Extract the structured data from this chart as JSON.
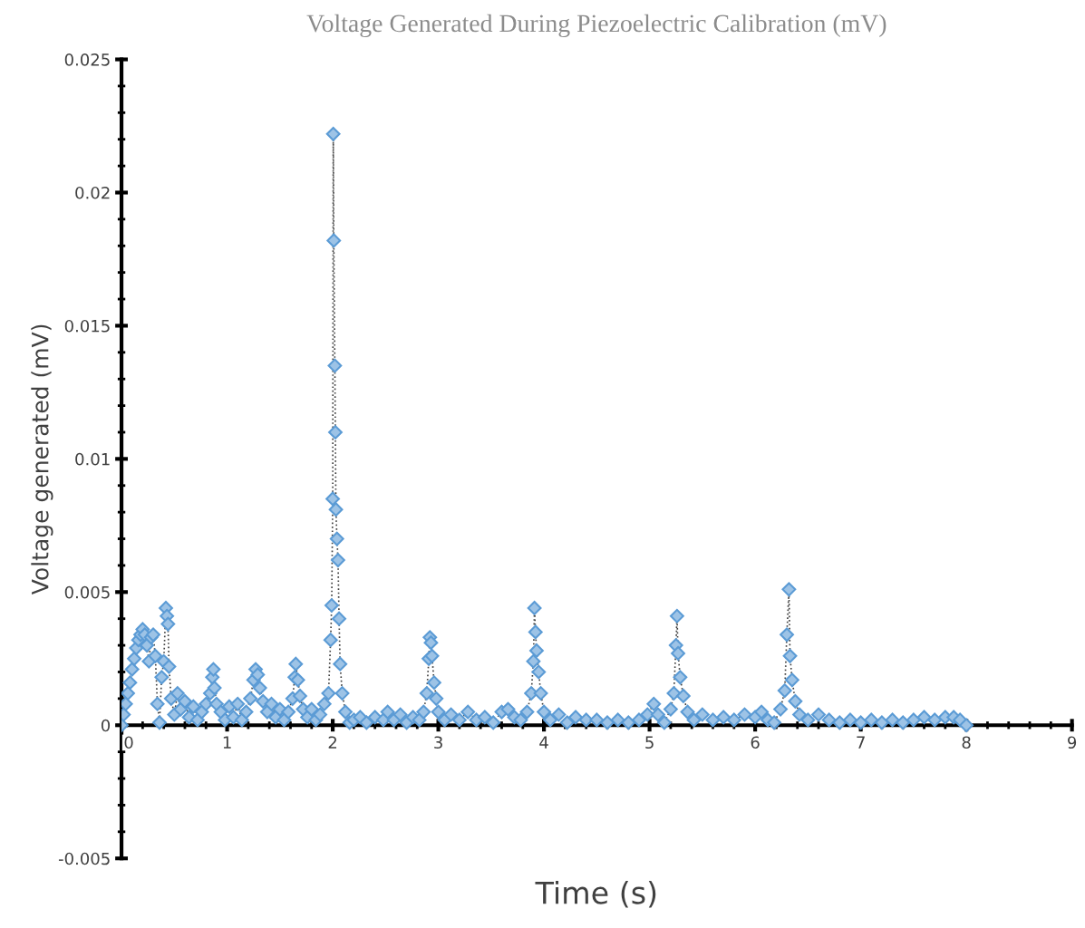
{
  "chart_data": {
    "type": "line",
    "title": "Voltage Generated During Piezoelectric Calibration (mV)",
    "xlabel": "Time (s)",
    "ylabel": "Voltage generated (mV)",
    "xlim": [
      0,
      9
    ],
    "xticks": [
      0,
      1,
      2,
      3,
      4,
      5,
      6,
      7,
      8,
      9
    ],
    "ylim": [
      -0.005,
      0.025
    ],
    "yticks": [
      -0.005,
      0,
      0.005,
      0.01,
      0.015,
      0.02,
      0.025
    ],
    "grid": false,
    "legend": false,
    "marker": "diamond",
    "line_style": "dotted",
    "series": [
      {
        "color": "#5b9bd5",
        "x": [
          0,
          0.02,
          0.04,
          0.06,
          0.08,
          0.1,
          0.12,
          0.14,
          0.16,
          0.18,
          0.2,
          0.22,
          0.24,
          0.26,
          0.28,
          0.3,
          0.32,
          0.34,
          0.36,
          0.38,
          0.4,
          0.42,
          0.43,
          0.44,
          0.45,
          0.47,
          0.5,
          0.53,
          0.56,
          0.6,
          0.64,
          0.68,
          0.72,
          0.76,
          0.8,
          0.84,
          0.86,
          0.87,
          0.88,
          0.9,
          0.94,
          0.98,
          1.02,
          1.06,
          1.1,
          1.14,
          1.18,
          1.22,
          1.25,
          1.27,
          1.29,
          1.31,
          1.34,
          1.38,
          1.42,
          1.46,
          1.5,
          1.54,
          1.58,
          1.62,
          1.64,
          1.65,
          1.67,
          1.69,
          1.72,
          1.76,
          1.8,
          1.84,
          1.88,
          1.92,
          1.96,
          1.98,
          1.99,
          2.0,
          2.005,
          2.01,
          2.02,
          2.025,
          2.03,
          2.04,
          2.05,
          2.06,
          2.07,
          2.09,
          2.12,
          2.16,
          2.2,
          2.26,
          2.32,
          2.4,
          2.48,
          2.52,
          2.58,
          2.64,
          2.7,
          2.76,
          2.82,
          2.86,
          2.89,
          2.91,
          2.92,
          2.93,
          2.94,
          2.96,
          2.98,
          3.0,
          3.06,
          3.12,
          3.2,
          3.28,
          3.36,
          3.44,
          3.52,
          3.6,
          3.66,
          3.72,
          3.78,
          3.84,
          3.88,
          3.9,
          3.91,
          3.92,
          3.93,
          3.95,
          3.97,
          4.0,
          4.06,
          4.14,
          4.22,
          4.3,
          4.4,
          4.5,
          4.6,
          4.7,
          4.8,
          4.9,
          4.98,
          5.04,
          5.08,
          5.14,
          5.2,
          5.23,
          5.25,
          5.26,
          5.27,
          5.29,
          5.32,
          5.36,
          5.42,
          5.5,
          5.6,
          5.7,
          5.8,
          5.9,
          6.0,
          6.06,
          6.12,
          6.18,
          6.24,
          6.28,
          6.3,
          6.32,
          6.33,
          6.35,
          6.38,
          6.42,
          6.5,
          6.6,
          6.7,
          6.8,
          6.9,
          7.0,
          7.1,
          7.2,
          7.3,
          7.4,
          7.5,
          7.6,
          7.7,
          7.8,
          7.88,
          7.94,
          8.0
        ],
        "values": [
          0,
          0.0004,
          0.0008,
          0.0012,
          0.0016,
          0.0021,
          0.0025,
          0.0029,
          0.0032,
          0.0034,
          0.0036,
          0.0034,
          0.003,
          0.0024,
          0.0033,
          0.0034,
          0.0026,
          0.0008,
          0.0001,
          0.0018,
          0.0024,
          0.0044,
          0.0041,
          0.0038,
          0.0022,
          0.001,
          0.0004,
          0.0012,
          0.0006,
          0.0009,
          0.0003,
          0.0007,
          0.0002,
          0.0005,
          0.0008,
          0.0012,
          0.0018,
          0.0021,
          0.0014,
          0.0008,
          0.0005,
          0.0002,
          0.0007,
          0.0003,
          0.0008,
          0.0002,
          0.0005,
          0.001,
          0.0017,
          0.0021,
          0.0019,
          0.0014,
          0.0009,
          0.0005,
          0.0008,
          0.0003,
          0.0006,
          0.0002,
          0.0005,
          0.001,
          0.0018,
          0.0023,
          0.0017,
          0.0011,
          0.0006,
          0.0003,
          0.0006,
          0.0002,
          0.0004,
          0.0008,
          0.0012,
          0.0032,
          0.0045,
          0.0085,
          0.0222,
          0.0182,
          0.0135,
          0.011,
          0.0081,
          0.007,
          0.0062,
          0.004,
          0.0023,
          0.0012,
          0.0005,
          0.0001,
          0.0002,
          0.0003,
          0.0001,
          0.0003,
          0.0002,
          0.0005,
          0.0002,
          0.0004,
          0.0001,
          0.0003,
          0.0002,
          0.0005,
          0.0012,
          0.0025,
          0.0033,
          0.0031,
          0.0026,
          0.0016,
          0.001,
          0.0005,
          0.0002,
          0.0004,
          0.0002,
          0.0005,
          0.0002,
          0.0003,
          0.0001,
          0.0005,
          0.0006,
          0.0003,
          0.0002,
          0.0005,
          0.0012,
          0.0024,
          0.0044,
          0.0035,
          0.0028,
          0.002,
          0.0012,
          0.0005,
          0.0002,
          0.0004,
          0.0001,
          0.0003,
          0.0002,
          0.0002,
          0.0001,
          0.0002,
          0.0001,
          0.0002,
          0.0004,
          0.0008,
          0.0004,
          0.0001,
          0.0006,
          0.0012,
          0.003,
          0.0041,
          0.0027,
          0.0018,
          0.0011,
          0.0005,
          0.0002,
          0.0004,
          0.0002,
          0.0003,
          0.0002,
          0.0004,
          0.0003,
          0.0005,
          0.0002,
          0.0001,
          0.0006,
          0.0013,
          0.0034,
          0.0051,
          0.0026,
          0.0017,
          0.0009,
          0.0004,
          0.0002,
          0.0004,
          0.0002,
          0.0001,
          0.0002,
          0.0001,
          0.0002,
          0.0001,
          0.0002,
          0.0001,
          0.0002,
          0.0003,
          0.0002,
          0.0003,
          0.0003,
          0.0002,
          0
        ]
      }
    ]
  }
}
